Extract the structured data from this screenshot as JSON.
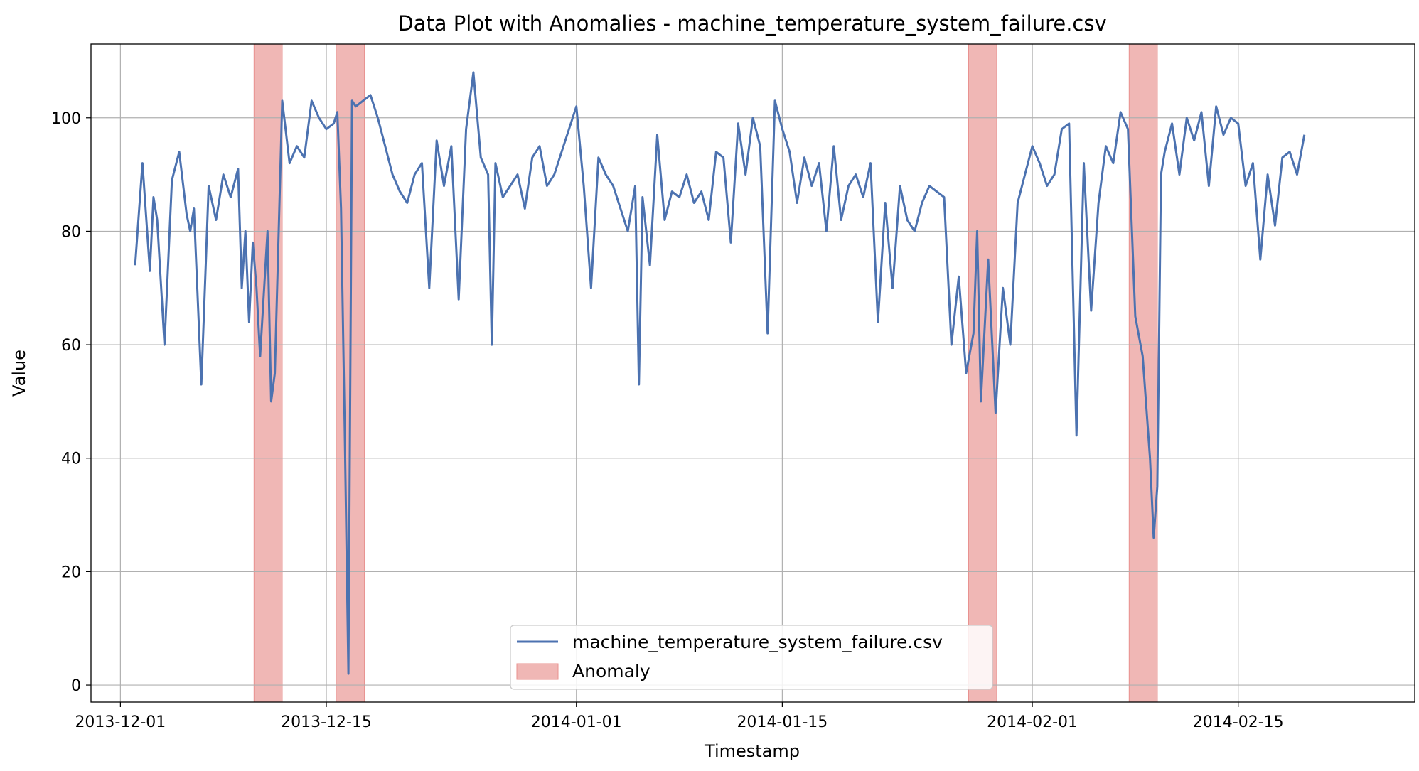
{
  "chart_data": {
    "type": "line",
    "title": "Data Plot with Anomalies - machine_temperature_system_failure.csv",
    "xlabel": "Timestamp",
    "ylabel": "Value",
    "xlim": [
      "2013-11-29",
      "2014-02-27"
    ],
    "ylim": [
      -3,
      113
    ],
    "x_ticks": [
      "2013-12-01",
      "2013-12-15",
      "2014-01-01",
      "2014-01-15",
      "2014-02-01",
      "2014-02-15"
    ],
    "y_ticks": [
      0,
      20,
      40,
      60,
      80,
      100
    ],
    "grid": true,
    "legend_placement": "lower center",
    "colors": {
      "series": "#4c72b0",
      "anomaly": "#e8908e"
    },
    "series": [
      {
        "name": "machine_temperature_system_failure.csv",
        "x": [
          "2013-12-02",
          "2013-12-02 12:00",
          "2013-12-03",
          "2013-12-03 06:00",
          "2013-12-03 12:00",
          "2013-12-04",
          "2013-12-04 12:00",
          "2013-12-05",
          "2013-12-05 12:00",
          "2013-12-05 18:00",
          "2013-12-06",
          "2013-12-06 12:00",
          "2013-12-07",
          "2013-12-07 12:00",
          "2013-12-08",
          "2013-12-08 12:00",
          "2013-12-09",
          "2013-12-09 06:00",
          "2013-12-09 12:00",
          "2013-12-09 18:00",
          "2013-12-10",
          "2013-12-10 06:00",
          "2013-12-10 12:00",
          "2013-12-11",
          "2013-12-11 06:00",
          "2013-12-11 12:00",
          "2013-12-12",
          "2013-12-12 12:00",
          "2013-12-13",
          "2013-12-13 12:00",
          "2013-12-14",
          "2013-12-14 12:00",
          "2013-12-15",
          "2013-12-15 12:00",
          "2013-12-15 18:00",
          "2013-12-16",
          "2013-12-16 06:00",
          "2013-12-16 12:00",
          "2013-12-16 18:00",
          "2013-12-17",
          "2013-12-17 12:00",
          "2013-12-18",
          "2013-12-18 12:00",
          "2013-12-19",
          "2013-12-19 12:00",
          "2013-12-20",
          "2013-12-20 12:00",
          "2013-12-21",
          "2013-12-21 12:00",
          "2013-12-22",
          "2013-12-22 12:00",
          "2013-12-23",
          "2013-12-23 12:00",
          "2013-12-24",
          "2013-12-24 12:00",
          "2013-12-25",
          "2013-12-25 12:00",
          "2013-12-26",
          "2013-12-26 06:00",
          "2013-12-26 12:00",
          "2013-12-27",
          "2013-12-27 12:00",
          "2013-12-28",
          "2013-12-28 12:00",
          "2013-12-29",
          "2013-12-29 12:00",
          "2013-12-30",
          "2013-12-30 12:00",
          "2013-12-31",
          "2013-12-31 12:00",
          "2014-01-01",
          "2014-01-01 12:00",
          "2014-01-02",
          "2014-01-02 12:00",
          "2014-01-03",
          "2014-01-03 12:00",
          "2014-01-04",
          "2014-01-04 12:00",
          "2014-01-05",
          "2014-01-05 06:00",
          "2014-01-05 12:00",
          "2014-01-06",
          "2014-01-06 12:00",
          "2014-01-07",
          "2014-01-07 12:00",
          "2014-01-08",
          "2014-01-08 12:00",
          "2014-01-09",
          "2014-01-09 12:00",
          "2014-01-10",
          "2014-01-10 12:00",
          "2014-01-11",
          "2014-01-11 12:00",
          "2014-01-12",
          "2014-01-12 12:00",
          "2014-01-13",
          "2014-01-13 12:00",
          "2014-01-14",
          "2014-01-14 12:00",
          "2014-01-15",
          "2014-01-15 12:00",
          "2014-01-16",
          "2014-01-16 12:00",
          "2014-01-17",
          "2014-01-17 12:00",
          "2014-01-18",
          "2014-01-18 12:00",
          "2014-01-19",
          "2014-01-19 12:00",
          "2014-01-20",
          "2014-01-20 12:00",
          "2014-01-21",
          "2014-01-21 12:00",
          "2014-01-22",
          "2014-01-22 12:00",
          "2014-01-23",
          "2014-01-23 12:00",
          "2014-01-24",
          "2014-01-24 12:00",
          "2014-01-25",
          "2014-01-25 12:00",
          "2014-01-26",
          "2014-01-26 12:00",
          "2014-01-27",
          "2014-01-27 12:00",
          "2014-01-28",
          "2014-01-28 06:00",
          "2014-01-28 12:00",
          "2014-01-29",
          "2014-01-29 12:00",
          "2014-01-30",
          "2014-01-30 12:00",
          "2014-01-31",
          "2014-01-31 12:00",
          "2014-02-01",
          "2014-02-01 12:00",
          "2014-02-02",
          "2014-02-02 12:00",
          "2014-02-03",
          "2014-02-03 12:00",
          "2014-02-04",
          "2014-02-04 12:00",
          "2014-02-05",
          "2014-02-05 12:00",
          "2014-02-06",
          "2014-02-06 12:00",
          "2014-02-07",
          "2014-02-07 12:00",
          "2014-02-08",
          "2014-02-08 12:00",
          "2014-02-09",
          "2014-02-09 06:00",
          "2014-02-09 12:00",
          "2014-02-09 18:00",
          "2014-02-10",
          "2014-02-10 12:00",
          "2014-02-11",
          "2014-02-11 12:00",
          "2014-02-12",
          "2014-02-12 12:00",
          "2014-02-13",
          "2014-02-13 12:00",
          "2014-02-14",
          "2014-02-14 12:00",
          "2014-02-15",
          "2014-02-15 12:00",
          "2014-02-16",
          "2014-02-16 12:00",
          "2014-02-17",
          "2014-02-17 12:00",
          "2014-02-18",
          "2014-02-18 12:00",
          "2014-02-19",
          "2014-02-19 12:00"
        ],
        "values": [
          74,
          92,
          73,
          86,
          82,
          60,
          89,
          94,
          83,
          80,
          84,
          53,
          88,
          82,
          90,
          86,
          91,
          70,
          80,
          64,
          78,
          70,
          58,
          80,
          50,
          55,
          103,
          92,
          95,
          93,
          103,
          100,
          98,
          99,
          101,
          84,
          45,
          2,
          103,
          102,
          103,
          104,
          100,
          95,
          90,
          87,
          85,
          90,
          92,
          70,
          96,
          88,
          95,
          68,
          98,
          108,
          93,
          90,
          60,
          92,
          86,
          88,
          90,
          84,
          93,
          95,
          88,
          90,
          94,
          98,
          102,
          88,
          70,
          93,
          90,
          88,
          84,
          80,
          88,
          53,
          86,
          74,
          97,
          82,
          87,
          86,
          90,
          85,
          87,
          82,
          94,
          93,
          78,
          99,
          90,
          100,
          95,
          62,
          103,
          98,
          94,
          85,
          93,
          88,
          92,
          80,
          95,
          82,
          88,
          90,
          86,
          92,
          64,
          85,
          70,
          88,
          82,
          80,
          85,
          88,
          87,
          86,
          60,
          72,
          55,
          62,
          80,
          50,
          75,
          48,
          70,
          60,
          85,
          90,
          95,
          92,
          88,
          90,
          98,
          99,
          44,
          92,
          66,
          85,
          95,
          92,
          101,
          98,
          65,
          58,
          40,
          26,
          35,
          90,
          94,
          99,
          90,
          100,
          96,
          101,
          88,
          102,
          97,
          100,
          99,
          88,
          92,
          75,
          90,
          81,
          93,
          94,
          90,
          97
        ]
      }
    ],
    "anomalies": [
      {
        "start": "2013-12-10 02:00",
        "end": "2013-12-12 00:00"
      },
      {
        "start": "2013-12-15 16:00",
        "end": "2013-12-17 14:00"
      },
      {
        "start": "2014-01-27 16:00",
        "end": "2014-01-29 14:00"
      },
      {
        "start": "2014-02-07 14:00",
        "end": "2014-02-09 12:00"
      }
    ],
    "legend": [
      {
        "label": "machine_temperature_system_failure.csv",
        "kind": "line"
      },
      {
        "label": "Anomaly",
        "kind": "patch"
      }
    ]
  }
}
